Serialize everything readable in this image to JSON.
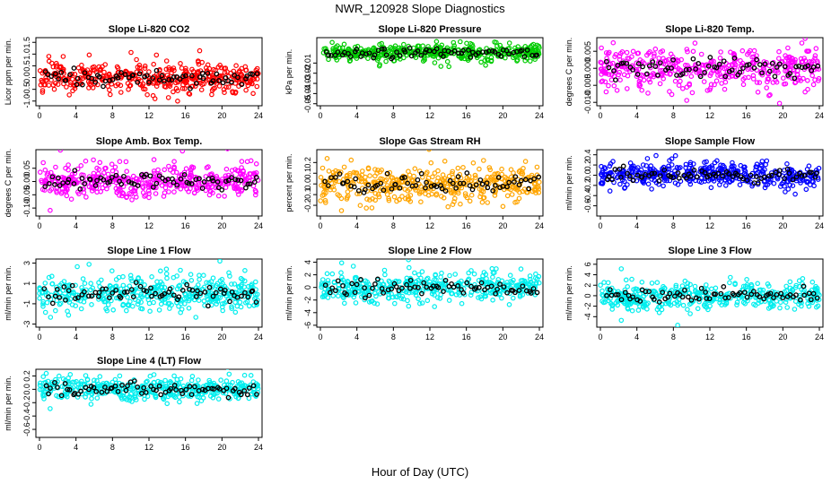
{
  "page": {
    "title": "NWR_120928  Slope Diagnostics",
    "xlabel": "Hour of Day (UTC)"
  },
  "colors": {
    "black_marker": "#000000",
    "axis": "#000000"
  },
  "chart_data": [
    {
      "type": "scatter",
      "title": "Slope Li-820 CO2",
      "ylabel": "Licor ppm per min.",
      "color": "#ff0000",
      "xlim": [
        0,
        24
      ],
      "ylim": [
        -1.2,
        1.7
      ],
      "yticks": [
        -1.0,
        -0.5,
        0.0,
        0.5,
        1.0,
        1.5
      ],
      "ytick_labels": [
        "-1.0",
        "-0.5",
        "0.0",
        "0.5",
        "1.0",
        "1.5"
      ],
      "xticks": [
        0,
        4,
        8,
        12,
        16,
        20,
        24
      ],
      "spread": 0.3
    },
    {
      "type": "scatter",
      "title": "Slope Li-820 Pressure",
      "ylabel": "kPa per min.",
      "color": "#00cc00",
      "xlim": [
        0,
        24
      ],
      "ylim": [
        -0.052,
        0.015
      ],
      "yticks": [
        -0.05,
        -0.04,
        -0.03,
        -0.02,
        -0.01
      ],
      "ytick_labels": [
        "-0.05",
        "-0.04",
        "-0.03",
        "-0.02",
        "-0.01"
      ],
      "xticks": [
        0,
        4,
        8,
        12,
        16,
        20,
        24
      ],
      "spread": 0.004,
      "center": 0.0
    },
    {
      "type": "scatter",
      "title": "Slope Li-820 Temp.",
      "ylabel": "degrees C per min.",
      "color": "#ff00ff",
      "xlim": [
        0,
        24
      ],
      "ylim": [
        -0.011,
        0.009
      ],
      "yticks": [
        -0.01,
        -0.005,
        0.0,
        0.005
      ],
      "ytick_labels": [
        "-0.010",
        "-0.005",
        "0.000",
        "0.005"
      ],
      "xticks": [
        0,
        4,
        8,
        12,
        16,
        20,
        24
      ],
      "spread": 0.003
    },
    {
      "type": "scatter",
      "title": "Slope Amb. Box Temp.",
      "ylabel": "degrees C per min.",
      "color": "#ff00ff",
      "xlim": [
        0,
        24
      ],
      "ylim": [
        -0.13,
        0.12
      ],
      "yticks": [
        -0.1,
        -0.05,
        0.0,
        0.05
      ],
      "ytick_labels": [
        "-0.10",
        "-0.05",
        "0.00",
        "0.05"
      ],
      "xticks": [
        0,
        4,
        8,
        12,
        16,
        20,
        24
      ],
      "spread": 0.03
    },
    {
      "type": "scatter",
      "title": "Slope Gas Stream RH",
      "ylabel": "percent per min.",
      "color": "#ffa500",
      "xlim": [
        0,
        24
      ],
      "ylim": [
        -0.3,
        0.32
      ],
      "yticks": [
        -0.2,
        -0.1,
        0.0,
        0.1,
        0.2
      ],
      "ytick_labels": [
        "-0.2",
        "-0.1",
        "0.0",
        "0.1",
        "0.2"
      ],
      "xticks": [
        0,
        4,
        8,
        12,
        16,
        20,
        24
      ],
      "spread": 0.08
    },
    {
      "type": "scatter",
      "title": "Slope Sample Flow",
      "ylabel": "ml/min per min.",
      "color": "#0000ff",
      "xlim": [
        0,
        24
      ],
      "ylim": [
        -0.8,
        0.5
      ],
      "yticks": [
        -0.6,
        -0.4,
        -0.2,
        0.0,
        0.2,
        0.4
      ],
      "ytick_labels": [
        "-0.6",
        "-0.4",
        "-0.2",
        "0.0",
        "0.2",
        "0.4"
      ],
      "xticks": [
        0,
        4,
        8,
        12,
        16,
        20,
        24
      ],
      "spread": 0.12
    },
    {
      "type": "scatter",
      "title": "Slope Line 1 Flow",
      "ylabel": "ml/min per min.",
      "color": "#00eeee",
      "xlim": [
        0,
        24
      ],
      "ylim": [
        -3.3,
        3.4
      ],
      "yticks": [
        -3,
        -1,
        1,
        3
      ],
      "ytick_labels": [
        "-3",
        "-1",
        "1",
        "3"
      ],
      "xticks": [
        0,
        4,
        8,
        12,
        16,
        20,
        24
      ],
      "spread": 0.8
    },
    {
      "type": "scatter",
      "title": "Slope Line 2 Flow",
      "ylabel": "ml/min per min.",
      "color": "#00eeee",
      "xlim": [
        0,
        24
      ],
      "ylim": [
        -6.3,
        4.5
      ],
      "yticks": [
        -6,
        -4,
        -2,
        0,
        2,
        4
      ],
      "ytick_labels": [
        "-6",
        "-4",
        "-2",
        "0",
        "2",
        "4"
      ],
      "xticks": [
        0,
        4,
        8,
        12,
        16,
        20,
        24
      ],
      "spread": 1.2
    },
    {
      "type": "scatter",
      "title": "Slope Line 3 Flow",
      "ylabel": "ml/min per min.",
      "color": "#00eeee",
      "xlim": [
        0,
        24
      ],
      "ylim": [
        -6.0,
        7.0
      ],
      "yticks": [
        -4,
        -2,
        0,
        2,
        4,
        6
      ],
      "ytick_labels": [
        "-4",
        "-2",
        "0",
        "2",
        "4",
        "6"
      ],
      "xticks": [
        0,
        4,
        8,
        12,
        16,
        20,
        24
      ],
      "spread": 1.3
    },
    {
      "type": "scatter",
      "title": "Slope Line 4 (LT) Flow",
      "ylabel": "ml/min per min.",
      "color": "#00eeee",
      "xlim": [
        0,
        24
      ],
      "ylim": [
        -0.72,
        0.3
      ],
      "yticks": [
        -0.6,
        -0.4,
        -0.2,
        0.0,
        0.2
      ],
      "ytick_labels": [
        "-0.6",
        "-0.4",
        "-0.2",
        "0.0",
        "0.2"
      ],
      "xticks": [
        0,
        4,
        8,
        12,
        16,
        20,
        24
      ],
      "spread": 0.08
    }
  ]
}
